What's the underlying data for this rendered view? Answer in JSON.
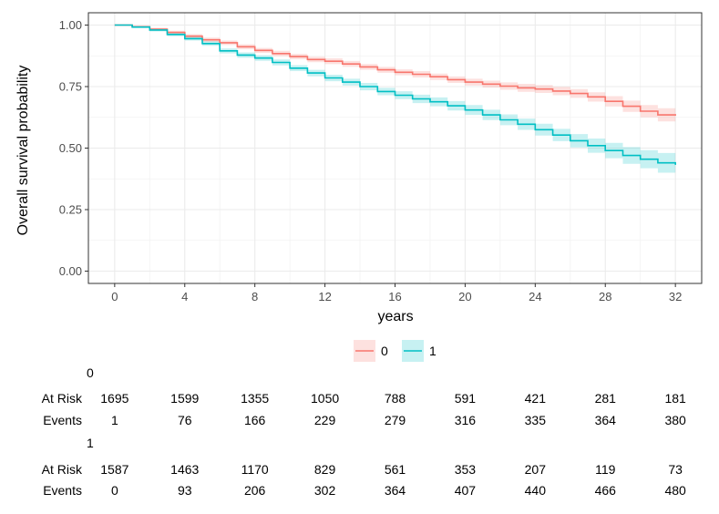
{
  "chart_data": {
    "type": "line",
    "ylabel": "Overall survival probability",
    "xlabel": "years",
    "xlim": [
      -1.5,
      33.5
    ],
    "ylim": [
      -0.05,
      1.05
    ],
    "x_ticks": [
      0,
      4,
      8,
      12,
      16,
      20,
      24,
      28,
      32
    ],
    "y_ticks": [
      0.0,
      0.25,
      0.5,
      0.75,
      1.0
    ],
    "y_tick_labels": [
      "0.00",
      "0.25",
      "0.50",
      "0.75",
      "1.00"
    ],
    "grid": true,
    "legend": {
      "position": "bottom",
      "entries": [
        "0",
        "1"
      ]
    },
    "series": [
      {
        "name": "0",
        "color": "#F8766D",
        "x": [
          0,
          1,
          2,
          3,
          4,
          5,
          6,
          7,
          8,
          9,
          10,
          11,
          12,
          13,
          14,
          15,
          16,
          17,
          18,
          19,
          20,
          21,
          22,
          23,
          24,
          25,
          26,
          27,
          28,
          29,
          30,
          31,
          32
        ],
        "y": [
          1.0,
          0.993,
          0.983,
          0.97,
          0.955,
          0.94,
          0.928,
          0.912,
          0.897,
          0.884,
          0.872,
          0.86,
          0.853,
          0.842,
          0.83,
          0.818,
          0.808,
          0.8,
          0.79,
          0.778,
          0.768,
          0.76,
          0.752,
          0.745,
          0.74,
          0.732,
          0.722,
          0.708,
          0.69,
          0.67,
          0.65,
          0.635,
          0.632
        ],
        "ci_width": [
          0,
          0.004,
          0.006,
          0.007,
          0.008,
          0.009,
          0.009,
          0.01,
          0.01,
          0.011,
          0.011,
          0.011,
          0.012,
          0.012,
          0.012,
          0.012,
          0.012,
          0.013,
          0.013,
          0.013,
          0.014,
          0.014,
          0.015,
          0.016,
          0.016,
          0.017,
          0.018,
          0.019,
          0.021,
          0.023,
          0.025,
          0.027,
          0.028
        ]
      },
      {
        "name": "1",
        "color": "#00BFC4",
        "x": [
          0,
          1,
          2,
          3,
          4,
          5,
          6,
          7,
          8,
          9,
          10,
          11,
          12,
          13,
          14,
          15,
          16,
          17,
          18,
          19,
          20,
          21,
          22,
          23,
          24,
          25,
          26,
          27,
          28,
          29,
          30,
          31,
          32
        ],
        "y": [
          1.0,
          0.992,
          0.98,
          0.962,
          0.945,
          0.925,
          0.895,
          0.878,
          0.866,
          0.848,
          0.825,
          0.805,
          0.785,
          0.768,
          0.75,
          0.73,
          0.715,
          0.7,
          0.688,
          0.672,
          0.655,
          0.635,
          0.615,
          0.597,
          0.575,
          0.553,
          0.53,
          0.51,
          0.49,
          0.47,
          0.455,
          0.44,
          0.432
        ],
        "ci_width": [
          0,
          0.004,
          0.006,
          0.007,
          0.008,
          0.009,
          0.01,
          0.011,
          0.011,
          0.012,
          0.012,
          0.013,
          0.013,
          0.014,
          0.015,
          0.015,
          0.016,
          0.017,
          0.018,
          0.019,
          0.02,
          0.021,
          0.022,
          0.023,
          0.024,
          0.025,
          0.027,
          0.029,
          0.031,
          0.034,
          0.037,
          0.04,
          0.042
        ]
      }
    ],
    "risk_table": {
      "times": [
        0,
        4,
        8,
        12,
        16,
        20,
        24,
        28,
        32
      ],
      "row_labels": [
        "At Risk",
        "Events"
      ],
      "strata": [
        {
          "name": "0",
          "at_risk": [
            1695,
            1599,
            1355,
            1050,
            788,
            591,
            421,
            281,
            181
          ],
          "events": [
            1,
            76,
            166,
            229,
            279,
            316,
            335,
            364,
            380
          ]
        },
        {
          "name": "1",
          "at_risk": [
            1587,
            1463,
            1170,
            829,
            561,
            353,
            207,
            119,
            73
          ],
          "events": [
            0,
            93,
            206,
            302,
            364,
            407,
            440,
            466,
            480
          ]
        }
      ]
    }
  }
}
